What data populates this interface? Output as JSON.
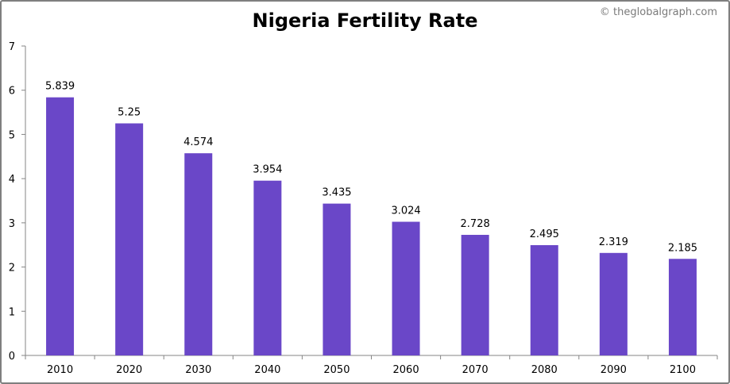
{
  "watermark": "© theglobalgraph.com",
  "colors": {
    "bar": "#6a47c8",
    "axis": "#868686",
    "border": "#7f7f7f"
  },
  "chart_data": {
    "type": "bar",
    "title": "Nigeria Fertility Rate",
    "xlabel": "",
    "ylabel": "",
    "categories": [
      "2010",
      "2020",
      "2030",
      "2040",
      "2050",
      "2060",
      "2070",
      "2080",
      "2090",
      "2100"
    ],
    "values": [
      5.839,
      5.25,
      4.574,
      3.954,
      3.435,
      3.024,
      2.728,
      2.495,
      2.319,
      2.185
    ],
    "data_labels": [
      "5.839",
      "5.25",
      "4.574",
      "3.954",
      "3.435",
      "3.024",
      "2.728",
      "2.495",
      "2.319",
      "2.185"
    ],
    "ylim": [
      0,
      7
    ],
    "yticks": [
      0,
      1,
      2,
      3,
      4,
      5,
      6,
      7
    ],
    "grid": false,
    "legend": "none"
  }
}
